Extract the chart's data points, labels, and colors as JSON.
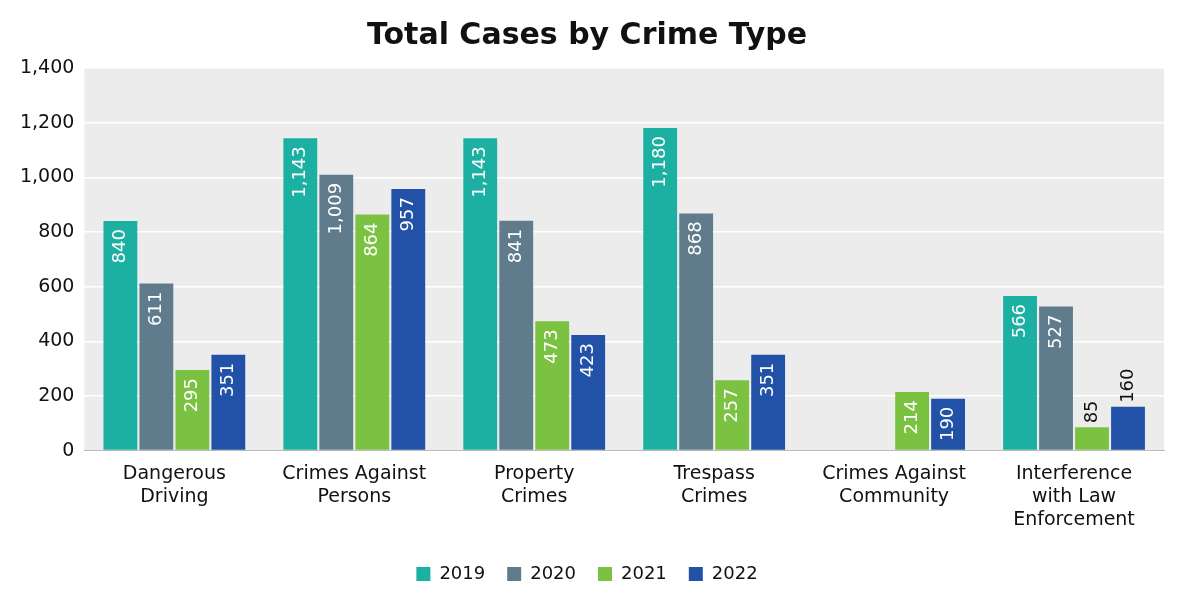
{
  "chart_data": {
    "type": "bar",
    "title": "Total Cases by Crime Type",
    "categories": [
      "Dangerous Driving",
      "Crimes Against Persons",
      "Property Crimes",
      "Trespass Crimes",
      "Crimes Against Community",
      "Interference with Law Enforcement"
    ],
    "series": [
      {
        "name": "2019",
        "color": "#1bb0a2",
        "values": [
          840,
          1143,
          1143,
          1180,
          null,
          566
        ],
        "value_labels": [
          "840",
          "1,143",
          "1,143",
          "1,180",
          null,
          "566"
        ]
      },
      {
        "name": "2020",
        "color": "#607c8c",
        "values": [
          611,
          1009,
          841,
          868,
          null,
          527
        ],
        "value_labels": [
          "611",
          "1,009",
          "841",
          "868",
          null,
          "527"
        ]
      },
      {
        "name": "2021",
        "color": "#7cc242",
        "values": [
          295,
          864,
          473,
          257,
          214,
          85
        ],
        "value_labels": [
          "295",
          "864",
          "473",
          "257",
          "214",
          "85"
        ]
      },
      {
        "name": "2022",
        "color": "#2152a8",
        "values": [
          351,
          957,
          423,
          351,
          190,
          160
        ],
        "value_labels": [
          "351",
          "957",
          "423",
          "351",
          "190",
          "160"
        ]
      }
    ],
    "ylim": [
      0,
      1400
    ],
    "yticks": [
      0,
      {
        "value": 200,
        "label": "200"
      },
      {
        "value": 400,
        "label": "400"
      },
      {
        "value": 600,
        "label": "600"
      },
      {
        "value": 800,
        "label": "800"
      },
      {
        "value": 1000,
        "label": "1,000"
      },
      {
        "value": 1200,
        "label": "1,200"
      },
      {
        "value": 1400,
        "label": "1,400"
      }
    ],
    "grid": "y",
    "legend": "bottom"
  }
}
